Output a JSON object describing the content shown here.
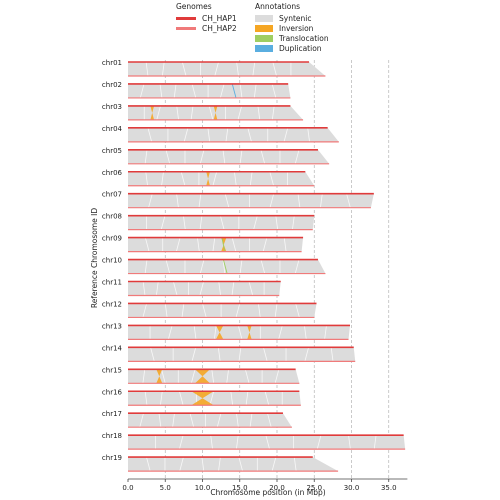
{
  "chart_data": {
    "type": "synteny",
    "xlabel": "Chromosome position (in Mbp)",
    "ylabel": "Reference Chromosome ID",
    "xlim": [
      0,
      37.5
    ],
    "xticks": [
      0,
      5,
      10,
      15,
      20,
      25,
      30,
      35
    ],
    "xtick_labels": [
      "0.0",
      "5.0",
      "10.0",
      "15.0",
      "20.0",
      "25.0",
      "30.0",
      "35.0"
    ],
    "grid": "vertical-dashed",
    "legend_genomes": {
      "title": "Genomes",
      "items": [
        {
          "name": "CH_HAP1",
          "color": "#e03b3b"
        },
        {
          "name": "CH_HAP2",
          "color": "#f07a7a"
        }
      ]
    },
    "legend_annotations": {
      "title": "Annotations",
      "items": [
        {
          "name": "Syntenic",
          "color": "#dcdcdc"
        },
        {
          "name": "Inversion",
          "color": "#f5a623"
        },
        {
          "name": "Translocation",
          "color": "#9fce62"
        },
        {
          "name": "Duplication",
          "color": "#5aaee0"
        }
      ]
    },
    "chromosomes": [
      {
        "id": "chr01",
        "hap1": 24.3,
        "hap2": 26.5,
        "inversions": []
      },
      {
        "id": "chr02",
        "hap1": 21.5,
        "hap2": 21.8,
        "inversions": []
      },
      {
        "id": "chr03",
        "hap1": 21.8,
        "hap2": 23.5,
        "inversions": [
          [
            3.0,
            3.5
          ],
          [
            11.5,
            12.0
          ]
        ]
      },
      {
        "id": "chr04",
        "hap1": 26.8,
        "hap2": 28.3,
        "inversions": []
      },
      {
        "id": "chr05",
        "hap1": 25.5,
        "hap2": 27.0,
        "inversions": []
      },
      {
        "id": "chr06",
        "hap1": 23.8,
        "hap2": 25.0,
        "inversions": [
          [
            10.5,
            11.0
          ]
        ]
      },
      {
        "id": "chr07",
        "hap1": 33.0,
        "hap2": 32.6,
        "inversions": []
      },
      {
        "id": "chr08",
        "hap1": 25.0,
        "hap2": 24.8,
        "inversions": []
      },
      {
        "id": "chr09",
        "hap1": 23.5,
        "hap2": 23.3,
        "inversions": [
          [
            12.5,
            13.2
          ]
        ]
      },
      {
        "id": "chr10",
        "hap1": 25.5,
        "hap2": 26.5,
        "inversions": []
      },
      {
        "id": "chr11",
        "hap1": 20.5,
        "hap2": 20.3,
        "inversions": []
      },
      {
        "id": "chr12",
        "hap1": 25.3,
        "hap2": 25.0,
        "inversions": []
      },
      {
        "id": "chr13",
        "hap1": 29.8,
        "hap2": 29.6,
        "inversions": [
          [
            11.8,
            12.8
          ],
          [
            16.0,
            16.6
          ]
        ]
      },
      {
        "id": "chr14",
        "hap1": 30.3,
        "hap2": 30.5,
        "inversions": []
      },
      {
        "id": "chr15",
        "hap1": 22.5,
        "hap2": 23.0,
        "inversions": [
          [
            3.8,
            4.6
          ],
          [
            9.0,
            11.0
          ]
        ]
      },
      {
        "id": "chr16",
        "hap1": 23.0,
        "hap2": 23.2,
        "inversions": [
          [
            8.5,
            11.5
          ]
        ]
      },
      {
        "id": "chr17",
        "hap1": 20.8,
        "hap2": 22.0,
        "inversions": []
      },
      {
        "id": "chr18",
        "hap1": 37.0,
        "hap2": 37.2,
        "inversions": []
      },
      {
        "id": "chr19",
        "hap1": 24.8,
        "hap2": 28.2,
        "inversions": []
      }
    ]
  }
}
